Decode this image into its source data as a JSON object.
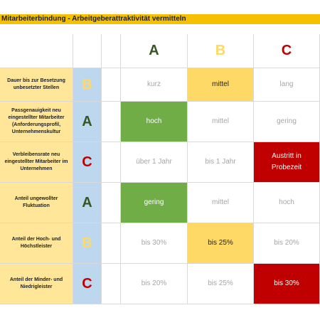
{
  "header": {
    "title": "Mitarbeiterbindung - Arbeitgeberattraktivität vermitteln"
  },
  "table": {
    "columns": [
      "A",
      "B",
      "C"
    ],
    "rows": [
      {
        "label": "Dauer bis zur Besetzung unbesetzter Stellen",
        "rating": "B",
        "cells": [
          "kurz",
          "mittel",
          "lang"
        ]
      },
      {
        "label": "Passgenauigkeit neu eingestellter Mitarbeiter (Anforderungsprofil, Unternehmenskultur",
        "rating": "A",
        "cells": [
          "hoch",
          "mittel",
          "gering"
        ]
      },
      {
        "label": "Verbleibensrate neu eingestellter Mitarbeiter im Unternehmen",
        "rating": "C",
        "cells": [
          "über 1 Jahr",
          "bis 1 Jahr",
          "Austritt in Probezeit"
        ]
      },
      {
        "label": "Anteil ungewollter Fluktuation",
        "rating": "A",
        "cells": [
          "gering",
          "mittel",
          "hoch"
        ]
      },
      {
        "label": "Anteil der Hoch- und Höchstleister",
        "rating": "B",
        "cells": [
          "bis 30%",
          "bis 25%",
          "bis 20%"
        ]
      },
      {
        "label": "Anteil der Minder- und Niedrigleister",
        "rating": "C",
        "cells": [
          "bis 20%",
          "bis 25%",
          "bis 30%"
        ]
      }
    ]
  }
}
